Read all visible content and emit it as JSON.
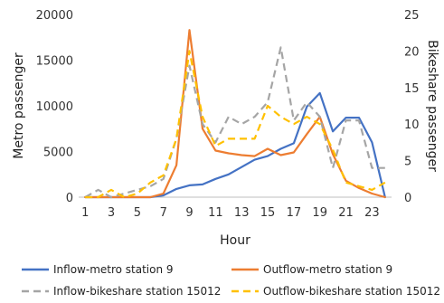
{
  "chart_data": {
    "type": "line",
    "xlabel": "Hour",
    "ylabel_left": "Metro passenger",
    "ylabel_right": "Bikeshare passenger",
    "x": [
      1,
      2,
      3,
      4,
      5,
      6,
      7,
      8,
      9,
      10,
      11,
      12,
      13,
      14,
      15,
      16,
      17,
      18,
      19,
      20,
      21,
      22,
      23,
      24
    ],
    "x_tick_labels": [
      "1",
      "3",
      "5",
      "7",
      "9",
      "11",
      "13",
      "15",
      "17",
      "19",
      "21",
      "23"
    ],
    "x_tick_values": [
      1,
      3,
      5,
      7,
      9,
      11,
      13,
      15,
      17,
      19,
      21,
      23
    ],
    "ylim_left": [
      0,
      20000
    ],
    "y_left_ticks": [
      0,
      5000,
      10000,
      15000,
      20000
    ],
    "y_left_tick_labels": [
      "0",
      "5000",
      "10000",
      "15000",
      "20000"
    ],
    "ylim_right": [
      0,
      25
    ],
    "y_right_ticks": [
      0,
      5,
      10,
      15,
      20,
      25
    ],
    "y_right_tick_labels": [
      "0",
      "5",
      "10",
      "15",
      "20",
      "25"
    ],
    "grid": false,
    "legend_position": "bottom",
    "series": [
      {
        "name": "Inflow-metro station 9",
        "axis": "left",
        "color": "#4472C4",
        "dash": "solid",
        "values": [
          0,
          0,
          0,
          0,
          0,
          0,
          200,
          900,
          1300,
          1400,
          2000,
          2500,
          3300,
          4100,
          4500,
          5300,
          5900,
          9900,
          11400,
          7200,
          8700,
          8700,
          6000,
          0
        ]
      },
      {
        "name": "Outflow-metro station 9",
        "axis": "left",
        "color": "#ED7D31",
        "dash": "solid",
        "values": [
          0,
          0,
          0,
          0,
          0,
          0,
          400,
          3500,
          18300,
          7500,
          5100,
          4800,
          4600,
          4500,
          5300,
          4600,
          4900,
          6900,
          8800,
          4700,
          1800,
          1000,
          400,
          0
        ]
      },
      {
        "name": "Inflow-bikeshare station 15012",
        "axis": "right",
        "color": "#A5A5A5",
        "dash": "dash",
        "values": [
          0,
          1,
          0,
          0.5,
          1,
          1.5,
          2.5,
          8,
          18,
          10,
          7.5,
          11,
          10,
          11,
          13,
          20.5,
          10.5,
          13,
          11,
          4,
          10.5,
          10.5,
          4,
          4
        ]
      },
      {
        "name": "Outflow-bikeshare station 15012",
        "axis": "right",
        "color": "#FFC000",
        "dash": "dash",
        "values": [
          0,
          0,
          1,
          0,
          0.5,
          2,
          3,
          8,
          20,
          11,
          7,
          8,
          8,
          8,
          12.5,
          11,
          10,
          11,
          10,
          6.5,
          2,
          1.5,
          1,
          2
        ]
      }
    ]
  }
}
